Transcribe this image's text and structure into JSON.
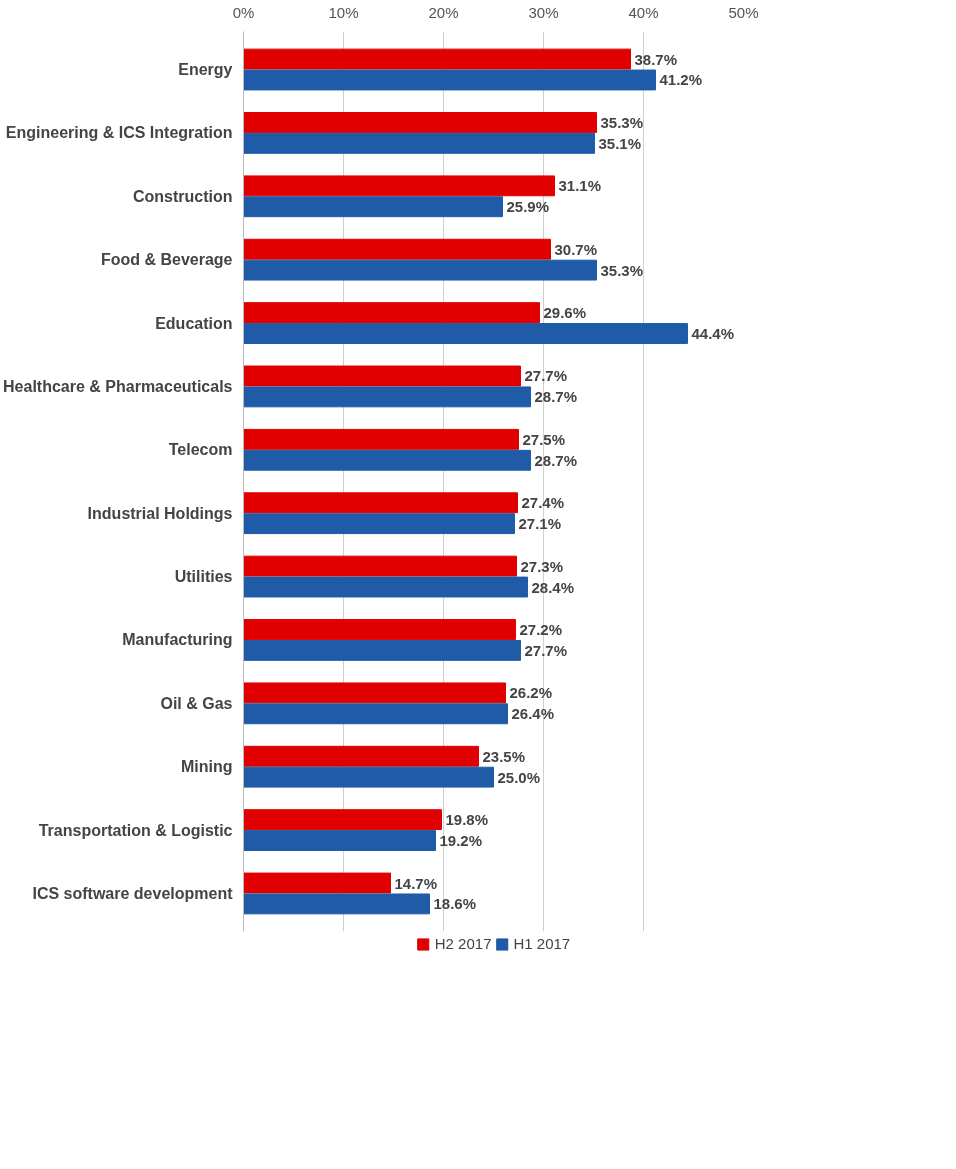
{
  "chart_data": {
    "type": "bar",
    "orientation": "horizontal",
    "categories": [
      "Energy",
      "Engineering & ICS Integration",
      "Construction",
      "Food & Beverage",
      "Education",
      "Healthcare & Pharmaceuticals",
      "Telecom",
      "Industrial Holdings",
      "Utilities",
      "Manufacturing",
      "Oil & Gas",
      "Mining",
      "Transportation & Logistic",
      "ICS software development"
    ],
    "series": [
      {
        "name": "H2 2017",
        "color": "#e00000",
        "values": [
          38.7,
          35.3,
          31.1,
          30.7,
          29.6,
          27.7,
          27.5,
          27.4,
          27.3,
          27.2,
          26.2,
          23.5,
          19.8,
          14.7
        ],
        "value_labels": [
          "38.7%",
          "35.3%",
          "31.1%",
          "30.7%",
          "29.6%",
          "27.7%",
          "27.5%",
          "27.4%",
          "27.3%",
          "27.2%",
          "26.2%",
          "23.5%",
          "19.8%",
          "14.7%"
        ]
      },
      {
        "name": "H1 2017",
        "color": "#1f5ba6",
        "values": [
          41.2,
          35.1,
          25.9,
          35.3,
          44.4,
          28.7,
          28.7,
          27.1,
          28.4,
          27.7,
          26.4,
          25.0,
          19.2,
          18.6
        ],
        "value_labels": [
          "41.2%",
          "35.1%",
          "25.9%",
          "35.3%",
          "44.4%",
          "28.7%",
          "28.7%",
          "27.1%",
          "28.4%",
          "27.7%",
          "26.4%",
          "25.0%",
          "19.2%",
          "18.6%"
        ]
      }
    ],
    "xlim": [
      0,
      50
    ],
    "xticks": [
      {
        "value": 0,
        "label": "0%"
      },
      {
        "value": 10,
        "label": "10%"
      },
      {
        "value": 20,
        "label": "20%"
      },
      {
        "value": 30,
        "label": "30%"
      },
      {
        "value": 40,
        "label": "40%"
      },
      {
        "value": 50,
        "label": "50%"
      }
    ],
    "grid": "x",
    "legend": "bottom"
  }
}
